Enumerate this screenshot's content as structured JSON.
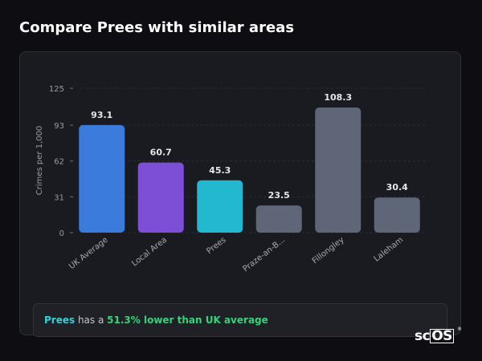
{
  "page": {
    "title": "Compare Prees with similar areas"
  },
  "chart_data": {
    "type": "bar",
    "ylabel": "Crimes per 1,000",
    "ylim": [
      0,
      125
    ],
    "yticks": [
      "0",
      "31",
      "62",
      "93",
      "125"
    ],
    "ytick_values": [
      0,
      31,
      62,
      93,
      125
    ],
    "grid": true,
    "categories": [
      "UK Average",
      "Local Area",
      "Prees",
      "Praze-an-B...",
      "Fillongley",
      "Laleham"
    ],
    "values": [
      93.1,
      60.7,
      45.3,
      23.5,
      108.3,
      30.4
    ],
    "value_labels": [
      "93.1",
      "60.7",
      "45.3",
      "23.5",
      "108.3",
      "30.4"
    ],
    "colors": [
      "#3a7bdc",
      "#7c4fd6",
      "#22b8cf",
      "#5e6677",
      "#5e6677",
      "#5e6677"
    ]
  },
  "summary": {
    "place": "Prees",
    "middle": " has a ",
    "difference": "51.3% lower than UK average"
  },
  "brand": {
    "text_left": "sc",
    "text_box": "OS",
    "registered": "®"
  }
}
